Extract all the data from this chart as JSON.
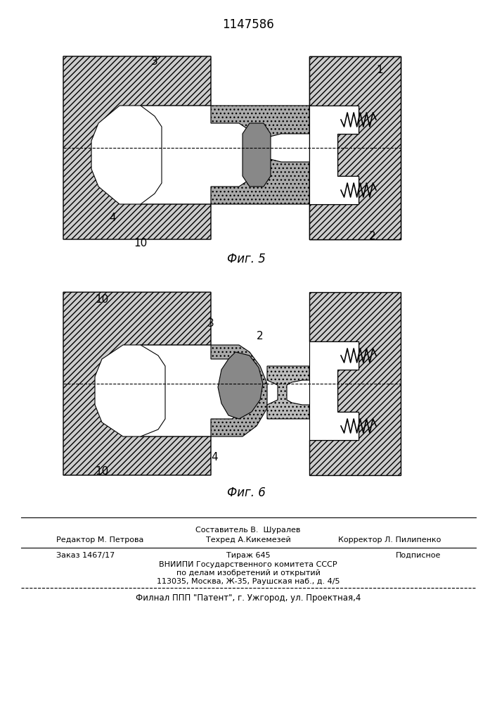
{
  "patent_number": "1147586",
  "fig5_label": "Фиг. 5",
  "fig6_label": "Фиг. 6",
  "bg_color": "#ffffff",
  "line_color": "#000000",
  "hatch_color": "#000000",
  "fill_color": "#d0d0d0",
  "footer_line1_left": "Редактор М. Петрова",
  "footer_line1_center": "Техред А.Кикемезей",
  "footer_line1_right": "Корректор Л. Пилипенко",
  "footer_line1_top": "Составитель В.  Шуралев",
  "footer_line2_left": "Заказ 1467/17",
  "footer_line2_center": "Тираж 645",
  "footer_line2_right": "Подписное",
  "footer_line3": "ВНИИПИ Государственного комитета СССР",
  "footer_line4": "по делам изобретений и открытий",
  "footer_line5": "113035, Москва, Ж-35, Раушская наб., д. 4/5",
  "footer_line6": "Филнал ППП \"Патент\", г. Ужгород, ул. Проектная,4"
}
